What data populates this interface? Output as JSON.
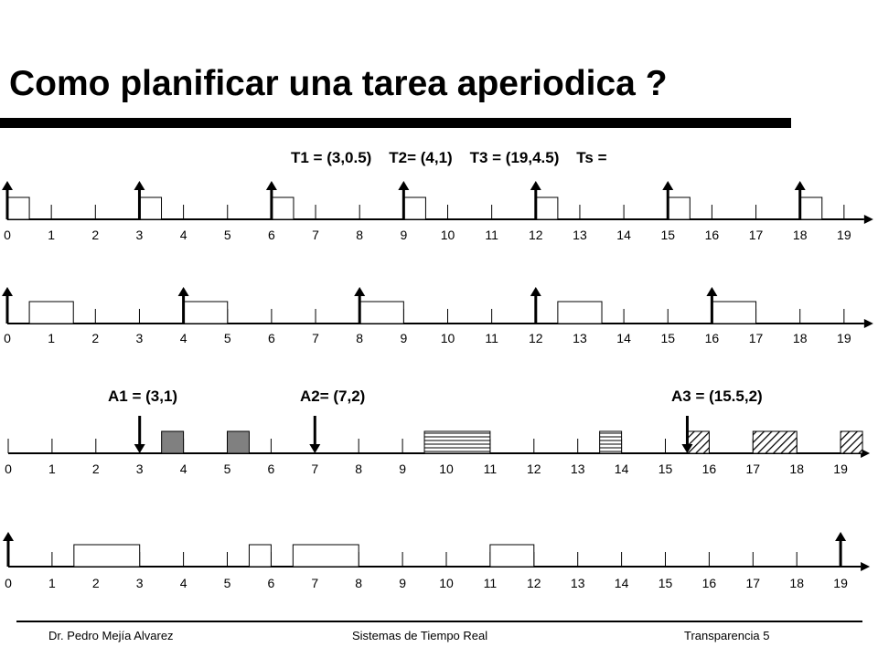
{
  "title": "Como planificar una tarea aperiodica ?",
  "periodic_label": "T1 = (3,0.5)    T2= (4,1)    T3 = (19,4.5)    Ts =",
  "aperiodic_labels": [
    "A1 = (3,1)",
    "A2= (7,2)",
    "A3 = (15.5,2)"
  ],
  "tick_labels": [
    "0",
    "1",
    "2",
    "3",
    "4",
    "5",
    "6",
    "7",
    "8",
    "9",
    "10",
    "11",
    "12",
    "13",
    "14",
    "15",
    "16",
    "17",
    "18",
    "19"
  ],
  "footer": {
    "author": "Dr. Pedro Mejía Alvarez",
    "course": "Sistemas de Tiempo Real",
    "slide": "Transparencia  5"
  },
  "timelines": [
    {
      "name": "T1",
      "arrivals": [
        0,
        3,
        6,
        9,
        12,
        15,
        18
      ],
      "arrows": "up",
      "blocks": [
        {
          "start": 0,
          "end": 0.5
        },
        {
          "start": 3,
          "end": 3.5
        },
        {
          "start": 6,
          "end": 6.5
        },
        {
          "start": 9,
          "end": 9.5
        },
        {
          "start": 12,
          "end": 12.5
        },
        {
          "start": 15,
          "end": 15.5
        },
        {
          "start": 18,
          "end": 18.5
        }
      ]
    },
    {
      "name": "T2",
      "arrivals": [
        0,
        4,
        8,
        12,
        16
      ],
      "arrows": "up",
      "blocks": [
        {
          "start": 0.5,
          "end": 1.5
        },
        {
          "start": 4,
          "end": 5
        },
        {
          "start": 8,
          "end": 9
        },
        {
          "start": 12.5,
          "end": 13.5
        },
        {
          "start": 16,
          "end": 17
        }
      ]
    },
    {
      "name": "Aperiodic",
      "arrivals": [
        3,
        7,
        15.5
      ],
      "arrows": "down",
      "blocks": [
        {
          "start": 3.5,
          "end": 4,
          "fill": "gray"
        },
        {
          "start": 5,
          "end": 5.5,
          "fill": "gray"
        },
        {
          "start": 9.5,
          "end": 11,
          "fill": "horizontal"
        },
        {
          "start": 13.5,
          "end": 14,
          "fill": "horizontal"
        },
        {
          "start": 15.5,
          "end": 16,
          "fill": "diagonal"
        },
        {
          "start": 17,
          "end": 18,
          "fill": "diagonal"
        },
        {
          "start": 19,
          "end": 19.5,
          "fill": "diagonal"
        }
      ]
    },
    {
      "name": "T3",
      "arrivals": [
        0,
        19
      ],
      "arrows": "up",
      "blocks": [
        {
          "start": 1.5,
          "end": 3
        },
        {
          "start": 5.5,
          "end": 6
        },
        {
          "start": 6.5,
          "end": 8
        },
        {
          "start": 11,
          "end": 12
        }
      ]
    }
  ]
}
